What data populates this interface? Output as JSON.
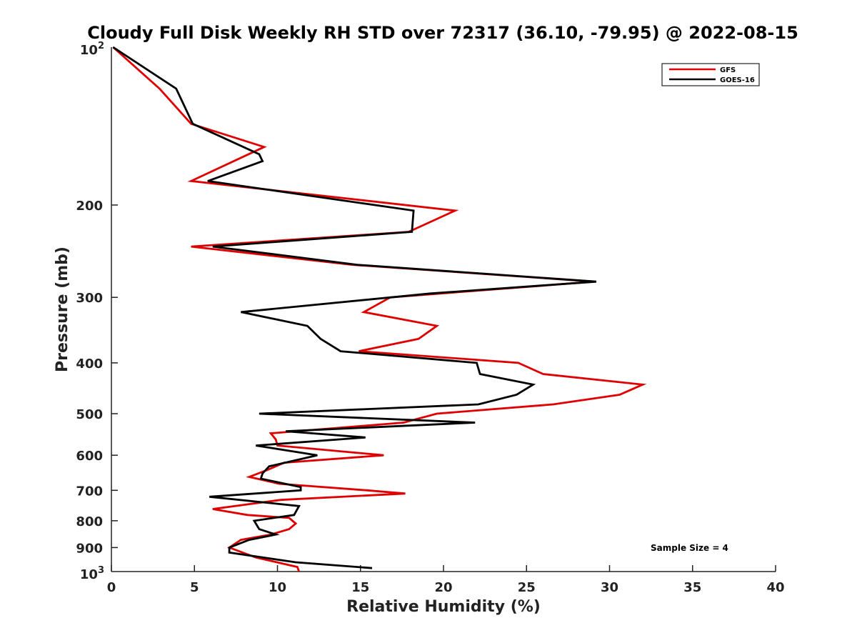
{
  "chart_data": {
    "type": "line",
    "title": "Cloudy Full Disk Weekly RH STD over 72317 (36.10, -79.95) @ 2022-08-15",
    "xlabel": "Relative Humidity (%)",
    "ylabel": "Pressure (mb)",
    "xlim": [
      0,
      40
    ],
    "ylim": [
      100,
      1000
    ],
    "y_scale": "log",
    "y_reversed": true,
    "x_ticks": [
      0,
      5,
      10,
      15,
      20,
      25,
      30,
      35,
      40
    ],
    "x_tick_labels": [
      "0",
      "5",
      "10",
      "15",
      "20",
      "25",
      "30",
      "35",
      "40"
    ],
    "y_ticks": [
      200,
      300,
      400,
      500,
      600,
      700,
      800,
      900
    ],
    "y_tick_labels": [
      "200",
      "300",
      "400",
      "500",
      "600",
      "700",
      "800",
      "900"
    ],
    "y_end_labels": {
      "top": {
        "base": "10",
        "exp": "2"
      },
      "bottom": {
        "base": "10",
        "exp": "3"
      }
    },
    "grid": false,
    "legend_position": "top-right",
    "series": [
      {
        "name": "GFS",
        "color": "#e00000",
        "x": [
          0.1,
          2.9,
          4.8,
          9.2,
          4.8,
          20.7,
          17.9,
          4.8,
          14.5,
          29.1,
          16.8,
          15.2,
          19.6,
          18.5,
          14.9,
          24.5,
          26,
          32,
          30.6,
          26.6,
          19.6,
          17.6,
          9.6,
          9.9,
          10,
          16.4,
          10.4,
          9.4,
          8.3,
          10.1,
          15.4,
          17.7,
          10.2,
          6.1,
          8.2,
          10.7,
          11.1,
          10.7,
          9.6,
          7.8,
          7.1,
          8.7,
          11.2,
          11.3
        ],
        "y": [
          100,
          120,
          140,
          155,
          180,
          205,
          225,
          240,
          260,
          280,
          300,
          320,
          340,
          360,
          380,
          400,
          420,
          440,
          460,
          480,
          500,
          520,
          545,
          560,
          575,
          600,
          620,
          640,
          660,
          680,
          700,
          710,
          730,
          760,
          780,
          790,
          810,
          830,
          850,
          870,
          900,
          940,
          980,
          1000
        ]
      },
      {
        "name": "GOES-16",
        "color": "#000000",
        "x": [
          0.1,
          3.9,
          4.9,
          8.9,
          9.1,
          5.8,
          18.2,
          18.1,
          6.1,
          14.8,
          29.2,
          19.2,
          7.8,
          11.8,
          12.6,
          13.8,
          22,
          22.2,
          25.4,
          24.4,
          22.1,
          8.9,
          21.9,
          10.5,
          15.3,
          8.7,
          12.4,
          9.5,
          9.1,
          9,
          11.4,
          11.4,
          5.9,
          11.3,
          11,
          8.6,
          8.9,
          9.9,
          8.3,
          7.1,
          7.1,
          11.1,
          15.7
        ],
        "y": [
          100,
          120,
          140,
          160,
          165,
          180,
          205,
          225,
          240,
          260,
          280,
          295,
          320,
          340,
          360,
          380,
          400,
          420,
          440,
          460,
          480,
          500,
          520,
          540,
          555,
          575,
          600,
          630,
          650,
          665,
          690,
          700,
          720,
          750,
          780,
          800,
          830,
          850,
          870,
          900,
          920,
          960,
          985
        ]
      }
    ],
    "annotation": "Sample Size = 4"
  }
}
